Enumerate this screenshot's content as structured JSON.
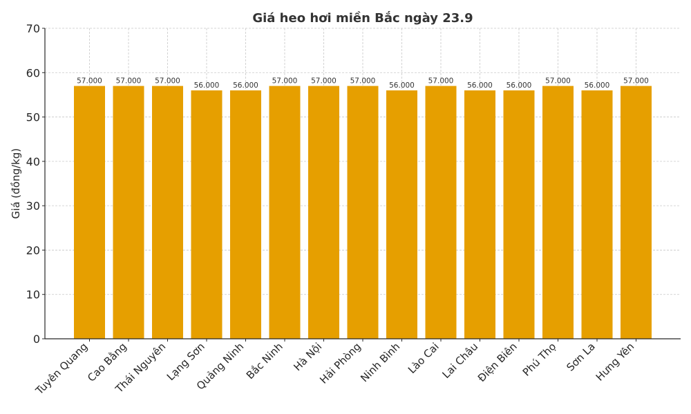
{
  "chart_data": {
    "type": "bar",
    "title": "Giá heo hơi miền Bắc ngày 23.9",
    "xlabel": "",
    "ylabel": "Giá (đồng/kg)",
    "ylim": [
      0,
      70
    ],
    "yticks": [
      0,
      10,
      20,
      30,
      40,
      50,
      60,
      70
    ],
    "grid": true,
    "legend": null,
    "bar_color": "#E69F00",
    "categories": [
      "Tuyên Quang",
      "Cao Bằng",
      "Thái Nguyên",
      "Lạng Sơn",
      "Quảng Ninh",
      "Bắc Ninh",
      "Hà Nội",
      "Hải Phòng",
      "Ninh Bình",
      "Lào Cai",
      "Lai Châu",
      "Điện Biên",
      "Phú Thọ",
      "Sơn La",
      "Hưng Yên"
    ],
    "values": [
      57,
      57,
      57,
      56,
      56,
      57,
      57,
      57,
      56,
      57,
      56,
      56,
      57,
      56,
      57
    ],
    "value_labels": [
      "57.000",
      "57.000",
      "57.000",
      "56.000",
      "56.000",
      "57.000",
      "57.000",
      "57.000",
      "56.000",
      "57.000",
      "56.000",
      "56.000",
      "57.000",
      "56.000",
      "57.000"
    ]
  }
}
